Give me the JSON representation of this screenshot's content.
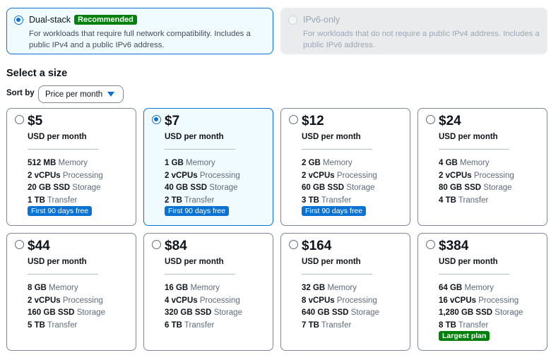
{
  "ip_options": [
    {
      "label": "Dual-stack",
      "badge": "Recommended",
      "desc": "For workloads that require full network compatibility. Includes a public IPv4 and a public IPv6 address.",
      "selected": true,
      "disabled": false
    },
    {
      "label": "IPv6-only",
      "badge": "",
      "desc": "For workloads that do not require a public IPv4 address. Includes a public IPv6 address.",
      "selected": false,
      "disabled": true
    }
  ],
  "section_title": "Select a size",
  "sort": {
    "label": "Sort by",
    "value": "Price per month"
  },
  "plans": [
    {
      "price": "$5",
      "unit": "USD per month",
      "specs": [
        [
          "512 MB",
          "Memory"
        ],
        [
          "2 vCPUs",
          "Processing"
        ],
        [
          "20 GB SSD",
          "Storage"
        ],
        [
          "1 TB",
          "Transfer"
        ]
      ],
      "badge": "First 90 days free",
      "badge_color": "blue",
      "selected": false
    },
    {
      "price": "$7",
      "unit": "USD per month",
      "specs": [
        [
          "1 GB",
          "Memory"
        ],
        [
          "2 vCPUs",
          "Processing"
        ],
        [
          "40 GB SSD",
          "Storage"
        ],
        [
          "2 TB",
          "Transfer"
        ]
      ],
      "badge": "First 90 days free",
      "badge_color": "blue",
      "selected": true
    },
    {
      "price": "$12",
      "unit": "USD per month",
      "specs": [
        [
          "2 GB",
          "Memory"
        ],
        [
          "2 vCPUs",
          "Processing"
        ],
        [
          "60 GB SSD",
          "Storage"
        ],
        [
          "3 TB",
          "Transfer"
        ]
      ],
      "badge": "First 90 days free",
      "badge_color": "blue",
      "selected": false
    },
    {
      "price": "$24",
      "unit": "USD per month",
      "specs": [
        [
          "4 GB",
          "Memory"
        ],
        [
          "2 vCPUs",
          "Processing"
        ],
        [
          "80 GB SSD",
          "Storage"
        ],
        [
          "4 TB",
          "Transfer"
        ]
      ],
      "badge": "",
      "badge_color": "",
      "selected": false
    },
    {
      "price": "$44",
      "unit": "USD per month",
      "specs": [
        [
          "8 GB",
          "Memory"
        ],
        [
          "2 vCPUs",
          "Processing"
        ],
        [
          "160 GB SSD",
          "Storage"
        ],
        [
          "5 TB",
          "Transfer"
        ]
      ],
      "badge": "",
      "badge_color": "",
      "selected": false
    },
    {
      "price": "$84",
      "unit": "USD per month",
      "specs": [
        [
          "16 GB",
          "Memory"
        ],
        [
          "4 vCPUs",
          "Processing"
        ],
        [
          "320 GB SSD",
          "Storage"
        ],
        [
          "6 TB",
          "Transfer"
        ]
      ],
      "badge": "",
      "badge_color": "",
      "selected": false
    },
    {
      "price": "$164",
      "unit": "USD per month",
      "specs": [
        [
          "32 GB",
          "Memory"
        ],
        [
          "8 vCPUs",
          "Processing"
        ],
        [
          "640 GB SSD",
          "Storage"
        ],
        [
          "7 TB",
          "Transfer"
        ]
      ],
      "badge": "",
      "badge_color": "",
      "selected": false
    },
    {
      "price": "$384",
      "unit": "USD per month",
      "specs": [
        [
          "64 GB",
          "Memory"
        ],
        [
          "16 vCPUs",
          "Processing"
        ],
        [
          "1,280 GB SSD",
          "Storage"
        ],
        [
          "8 TB",
          "Transfer"
        ]
      ],
      "badge": "Largest plan",
      "badge_color": "green",
      "selected": false
    }
  ],
  "colors": {
    "accent": "#0972d3",
    "success": "#037f0c",
    "selected_bg": "#f0fbff"
  }
}
